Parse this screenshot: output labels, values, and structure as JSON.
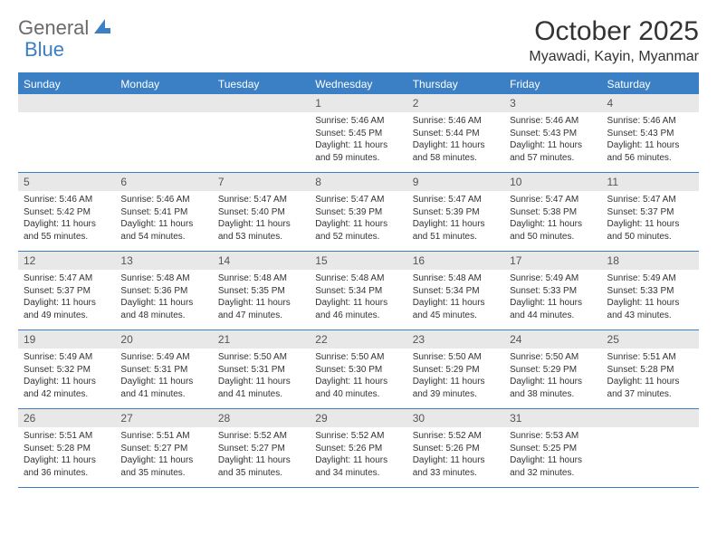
{
  "logo": {
    "general": "General",
    "blue": "Blue"
  },
  "title": "October 2025",
  "location": "Myawadi, Kayin, Myanmar",
  "colors": {
    "accent": "#3b7fc4",
    "header_text": "#ffffff",
    "daynum_bg": "#e8e8e8",
    "text": "#333333"
  },
  "day_headers": [
    "Sunday",
    "Monday",
    "Tuesday",
    "Wednesday",
    "Thursday",
    "Friday",
    "Saturday"
  ],
  "weeks": [
    [
      {
        "num": "",
        "sunrise": "",
        "sunset": "",
        "daylight": ""
      },
      {
        "num": "",
        "sunrise": "",
        "sunset": "",
        "daylight": ""
      },
      {
        "num": "",
        "sunrise": "",
        "sunset": "",
        "daylight": ""
      },
      {
        "num": "1",
        "sunrise": "Sunrise: 5:46 AM",
        "sunset": "Sunset: 5:45 PM",
        "daylight": "Daylight: 11 hours and 59 minutes."
      },
      {
        "num": "2",
        "sunrise": "Sunrise: 5:46 AM",
        "sunset": "Sunset: 5:44 PM",
        "daylight": "Daylight: 11 hours and 58 minutes."
      },
      {
        "num": "3",
        "sunrise": "Sunrise: 5:46 AM",
        "sunset": "Sunset: 5:43 PM",
        "daylight": "Daylight: 11 hours and 57 minutes."
      },
      {
        "num": "4",
        "sunrise": "Sunrise: 5:46 AM",
        "sunset": "Sunset: 5:43 PM",
        "daylight": "Daylight: 11 hours and 56 minutes."
      }
    ],
    [
      {
        "num": "5",
        "sunrise": "Sunrise: 5:46 AM",
        "sunset": "Sunset: 5:42 PM",
        "daylight": "Daylight: 11 hours and 55 minutes."
      },
      {
        "num": "6",
        "sunrise": "Sunrise: 5:46 AM",
        "sunset": "Sunset: 5:41 PM",
        "daylight": "Daylight: 11 hours and 54 minutes."
      },
      {
        "num": "7",
        "sunrise": "Sunrise: 5:47 AM",
        "sunset": "Sunset: 5:40 PM",
        "daylight": "Daylight: 11 hours and 53 minutes."
      },
      {
        "num": "8",
        "sunrise": "Sunrise: 5:47 AM",
        "sunset": "Sunset: 5:39 PM",
        "daylight": "Daylight: 11 hours and 52 minutes."
      },
      {
        "num": "9",
        "sunrise": "Sunrise: 5:47 AM",
        "sunset": "Sunset: 5:39 PM",
        "daylight": "Daylight: 11 hours and 51 minutes."
      },
      {
        "num": "10",
        "sunrise": "Sunrise: 5:47 AM",
        "sunset": "Sunset: 5:38 PM",
        "daylight": "Daylight: 11 hours and 50 minutes."
      },
      {
        "num": "11",
        "sunrise": "Sunrise: 5:47 AM",
        "sunset": "Sunset: 5:37 PM",
        "daylight": "Daylight: 11 hours and 50 minutes."
      }
    ],
    [
      {
        "num": "12",
        "sunrise": "Sunrise: 5:47 AM",
        "sunset": "Sunset: 5:37 PM",
        "daylight": "Daylight: 11 hours and 49 minutes."
      },
      {
        "num": "13",
        "sunrise": "Sunrise: 5:48 AM",
        "sunset": "Sunset: 5:36 PM",
        "daylight": "Daylight: 11 hours and 48 minutes."
      },
      {
        "num": "14",
        "sunrise": "Sunrise: 5:48 AM",
        "sunset": "Sunset: 5:35 PM",
        "daylight": "Daylight: 11 hours and 47 minutes."
      },
      {
        "num": "15",
        "sunrise": "Sunrise: 5:48 AM",
        "sunset": "Sunset: 5:34 PM",
        "daylight": "Daylight: 11 hours and 46 minutes."
      },
      {
        "num": "16",
        "sunrise": "Sunrise: 5:48 AM",
        "sunset": "Sunset: 5:34 PM",
        "daylight": "Daylight: 11 hours and 45 minutes."
      },
      {
        "num": "17",
        "sunrise": "Sunrise: 5:49 AM",
        "sunset": "Sunset: 5:33 PM",
        "daylight": "Daylight: 11 hours and 44 minutes."
      },
      {
        "num": "18",
        "sunrise": "Sunrise: 5:49 AM",
        "sunset": "Sunset: 5:33 PM",
        "daylight": "Daylight: 11 hours and 43 minutes."
      }
    ],
    [
      {
        "num": "19",
        "sunrise": "Sunrise: 5:49 AM",
        "sunset": "Sunset: 5:32 PM",
        "daylight": "Daylight: 11 hours and 42 minutes."
      },
      {
        "num": "20",
        "sunrise": "Sunrise: 5:49 AM",
        "sunset": "Sunset: 5:31 PM",
        "daylight": "Daylight: 11 hours and 41 minutes."
      },
      {
        "num": "21",
        "sunrise": "Sunrise: 5:50 AM",
        "sunset": "Sunset: 5:31 PM",
        "daylight": "Daylight: 11 hours and 41 minutes."
      },
      {
        "num": "22",
        "sunrise": "Sunrise: 5:50 AM",
        "sunset": "Sunset: 5:30 PM",
        "daylight": "Daylight: 11 hours and 40 minutes."
      },
      {
        "num": "23",
        "sunrise": "Sunrise: 5:50 AM",
        "sunset": "Sunset: 5:29 PM",
        "daylight": "Daylight: 11 hours and 39 minutes."
      },
      {
        "num": "24",
        "sunrise": "Sunrise: 5:50 AM",
        "sunset": "Sunset: 5:29 PM",
        "daylight": "Daylight: 11 hours and 38 minutes."
      },
      {
        "num": "25",
        "sunrise": "Sunrise: 5:51 AM",
        "sunset": "Sunset: 5:28 PM",
        "daylight": "Daylight: 11 hours and 37 minutes."
      }
    ],
    [
      {
        "num": "26",
        "sunrise": "Sunrise: 5:51 AM",
        "sunset": "Sunset: 5:28 PM",
        "daylight": "Daylight: 11 hours and 36 minutes."
      },
      {
        "num": "27",
        "sunrise": "Sunrise: 5:51 AM",
        "sunset": "Sunset: 5:27 PM",
        "daylight": "Daylight: 11 hours and 35 minutes."
      },
      {
        "num": "28",
        "sunrise": "Sunrise: 5:52 AM",
        "sunset": "Sunset: 5:27 PM",
        "daylight": "Daylight: 11 hours and 35 minutes."
      },
      {
        "num": "29",
        "sunrise": "Sunrise: 5:52 AM",
        "sunset": "Sunset: 5:26 PM",
        "daylight": "Daylight: 11 hours and 34 minutes."
      },
      {
        "num": "30",
        "sunrise": "Sunrise: 5:52 AM",
        "sunset": "Sunset: 5:26 PM",
        "daylight": "Daylight: 11 hours and 33 minutes."
      },
      {
        "num": "31",
        "sunrise": "Sunrise: 5:53 AM",
        "sunset": "Sunset: 5:25 PM",
        "daylight": "Daylight: 11 hours and 32 minutes."
      },
      {
        "num": "",
        "sunrise": "",
        "sunset": "",
        "daylight": ""
      }
    ]
  ]
}
